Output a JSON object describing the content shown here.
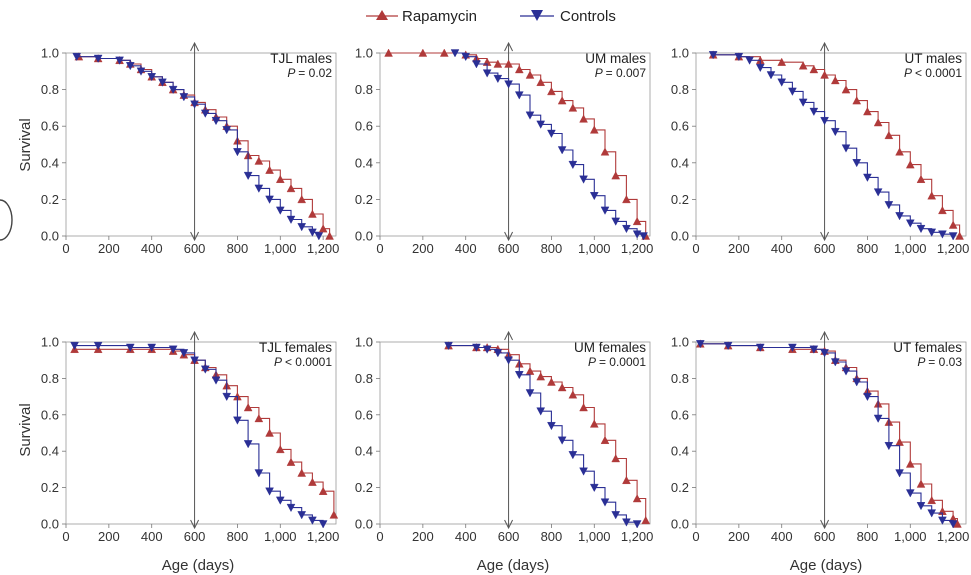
{
  "legend": {
    "items": [
      {
        "label": "Rapamycin",
        "color": "#b03a3a",
        "marker": "triangle-up"
      },
      {
        "label": "Controls",
        "color": "#2a2f95",
        "marker": "triangle-down"
      }
    ]
  },
  "axis_labels": {
    "y": "Survival",
    "x": "Age (days)"
  },
  "x_ticks": [
    "0",
    "200",
    "400",
    "600",
    "800",
    "1,000",
    "1,200"
  ],
  "y_ticks": [
    "0.0",
    "0.2",
    "0.4",
    "0.6",
    "0.8",
    "1.0"
  ],
  "chart_data": [
    {
      "type": "line",
      "panel": "TJL males",
      "title": "TJL males",
      "p_label": "P",
      "p_text": "= 0.02",
      "xlim": [
        0,
        1260
      ],
      "ylim": [
        0,
        1.0
      ],
      "marker_x": 600,
      "series": [
        {
          "name": "Rapamycin",
          "x": [
            60,
            150,
            250,
            300,
            350,
            400,
            450,
            500,
            550,
            600,
            650,
            700,
            750,
            800,
            850,
            900,
            950,
            1000,
            1050,
            1100,
            1150,
            1200,
            1230
          ],
          "y": [
            0.98,
            0.97,
            0.96,
            0.94,
            0.91,
            0.87,
            0.84,
            0.8,
            0.77,
            0.73,
            0.69,
            0.65,
            0.6,
            0.52,
            0.44,
            0.41,
            0.36,
            0.31,
            0.26,
            0.2,
            0.12,
            0.04,
            0.0
          ]
        },
        {
          "name": "Controls",
          "x": [
            50,
            150,
            250,
            300,
            350,
            400,
            450,
            500,
            550,
            600,
            650,
            700,
            750,
            800,
            850,
            900,
            950,
            1000,
            1050,
            1100,
            1150,
            1180
          ],
          "y": [
            0.98,
            0.97,
            0.96,
            0.93,
            0.9,
            0.87,
            0.84,
            0.8,
            0.76,
            0.72,
            0.67,
            0.63,
            0.58,
            0.46,
            0.33,
            0.26,
            0.2,
            0.14,
            0.09,
            0.05,
            0.02,
            0.0
          ]
        }
      ]
    },
    {
      "type": "line",
      "panel": "UM males",
      "title": "UM males",
      "p_label": "P",
      "p_text": "= 0.007",
      "xlim": [
        0,
        1260
      ],
      "ylim": [
        0,
        1.0
      ],
      "marker_x": 600,
      "series": [
        {
          "name": "Rapamycin",
          "x": [
            40,
            200,
            300,
            400,
            450,
            500,
            550,
            600,
            650,
            700,
            750,
            800,
            850,
            900,
            950,
            1000,
            1050,
            1100,
            1150,
            1200,
            1240
          ],
          "y": [
            1.0,
            1.0,
            1.0,
            0.99,
            0.97,
            0.95,
            0.94,
            0.94,
            0.91,
            0.88,
            0.84,
            0.79,
            0.74,
            0.7,
            0.64,
            0.58,
            0.46,
            0.33,
            0.2,
            0.08,
            0.0
          ]
        },
        {
          "name": "Controls",
          "x": [
            350,
            400,
            450,
            500,
            550,
            600,
            650,
            700,
            750,
            800,
            850,
            900,
            950,
            1000,
            1050,
            1100,
            1150,
            1200,
            1230
          ],
          "y": [
            1.0,
            0.98,
            0.94,
            0.89,
            0.86,
            0.83,
            0.77,
            0.66,
            0.61,
            0.56,
            0.47,
            0.39,
            0.31,
            0.22,
            0.14,
            0.08,
            0.04,
            0.01,
            0.0
          ]
        }
      ]
    },
    {
      "type": "line",
      "panel": "UT males",
      "title": "UT males",
      "p_label": "P",
      "p_text": "< 0.0001",
      "xlim": [
        0,
        1260
      ],
      "ylim": [
        0,
        1.0
      ],
      "marker_x": 600,
      "series": [
        {
          "name": "Rapamycin",
          "x": [
            80,
            200,
            300,
            400,
            500,
            550,
            600,
            650,
            700,
            750,
            800,
            850,
            900,
            950,
            1000,
            1050,
            1100,
            1150,
            1200,
            1230
          ],
          "y": [
            0.99,
            0.98,
            0.96,
            0.95,
            0.93,
            0.91,
            0.88,
            0.85,
            0.8,
            0.74,
            0.68,
            0.62,
            0.55,
            0.46,
            0.39,
            0.31,
            0.22,
            0.14,
            0.06,
            0.0
          ]
        },
        {
          "name": "Controls",
          "x": [
            80,
            200,
            250,
            300,
            350,
            400,
            450,
            500,
            550,
            600,
            650,
            700,
            750,
            800,
            850,
            900,
            950,
            1000,
            1050,
            1100,
            1150,
            1200
          ],
          "y": [
            0.99,
            0.98,
            0.96,
            0.92,
            0.88,
            0.84,
            0.79,
            0.73,
            0.68,
            0.63,
            0.57,
            0.48,
            0.4,
            0.32,
            0.24,
            0.17,
            0.11,
            0.07,
            0.04,
            0.02,
            0.01,
            0.0
          ]
        }
      ]
    },
    {
      "type": "line",
      "panel": "TJL females",
      "title": "TJL females",
      "p_label": "P",
      "p_text": "< 0.0001",
      "xlim": [
        0,
        1260
      ],
      "ylim": [
        0,
        1.0
      ],
      "marker_x": 600,
      "series": [
        {
          "name": "Rapamycin",
          "x": [
            40,
            150,
            300,
            400,
            500,
            550,
            600,
            650,
            700,
            750,
            800,
            850,
            900,
            950,
            1000,
            1050,
            1100,
            1150,
            1200,
            1250
          ],
          "y": [
            0.96,
            0.96,
            0.96,
            0.96,
            0.95,
            0.93,
            0.9,
            0.86,
            0.82,
            0.76,
            0.7,
            0.64,
            0.58,
            0.5,
            0.41,
            0.34,
            0.28,
            0.23,
            0.18,
            0.05
          ]
        },
        {
          "name": "Controls",
          "x": [
            40,
            150,
            300,
            400,
            500,
            550,
            600,
            650,
            700,
            750,
            800,
            850,
            900,
            950,
            1000,
            1050,
            1100,
            1150,
            1200
          ],
          "y": [
            0.98,
            0.98,
            0.97,
            0.97,
            0.96,
            0.94,
            0.9,
            0.85,
            0.79,
            0.7,
            0.57,
            0.44,
            0.28,
            0.18,
            0.13,
            0.09,
            0.05,
            0.02,
            0.0
          ]
        }
      ]
    },
    {
      "type": "line",
      "panel": "UM females",
      "title": "UM females",
      "p_label": "P",
      "p_text": "= 0.0001",
      "xlim": [
        0,
        1260
      ],
      "ylim": [
        0,
        1.0
      ],
      "marker_x": 600,
      "series": [
        {
          "name": "Rapamycin",
          "x": [
            320,
            450,
            500,
            550,
            600,
            650,
            700,
            750,
            800,
            850,
            900,
            950,
            1000,
            1050,
            1100,
            1150,
            1200,
            1240
          ],
          "y": [
            0.98,
            0.97,
            0.97,
            0.96,
            0.93,
            0.88,
            0.84,
            0.81,
            0.78,
            0.75,
            0.71,
            0.64,
            0.55,
            0.46,
            0.36,
            0.24,
            0.14,
            0.02
          ]
        },
        {
          "name": "Controls",
          "x": [
            320,
            450,
            500,
            550,
            600,
            650,
            700,
            750,
            800,
            850,
            900,
            950,
            1000,
            1050,
            1100,
            1150,
            1200
          ],
          "y": [
            0.98,
            0.97,
            0.96,
            0.94,
            0.9,
            0.82,
            0.72,
            0.62,
            0.54,
            0.46,
            0.38,
            0.29,
            0.2,
            0.12,
            0.05,
            0.01,
            0.0
          ]
        }
      ]
    },
    {
      "type": "line",
      "panel": "UT females",
      "title": "UT females",
      "p_label": "P",
      "p_text": "= 0.03",
      "xlim": [
        0,
        1260
      ],
      "ylim": [
        0,
        1.0
      ],
      "marker_x": 600,
      "series": [
        {
          "name": "Rapamycin",
          "x": [
            20,
            150,
            300,
            450,
            550,
            600,
            650,
            700,
            750,
            800,
            850,
            900,
            950,
            1000,
            1050,
            1100,
            1150,
            1200,
            1220
          ],
          "y": [
            0.99,
            0.98,
            0.97,
            0.96,
            0.96,
            0.95,
            0.9,
            0.86,
            0.8,
            0.73,
            0.66,
            0.56,
            0.45,
            0.33,
            0.22,
            0.13,
            0.07,
            0.03,
            0.0
          ]
        },
        {
          "name": "Controls",
          "x": [
            20,
            150,
            300,
            450,
            550,
            600,
            650,
            700,
            750,
            800,
            850,
            900,
            950,
            1000,
            1050,
            1100,
            1150,
            1200
          ],
          "y": [
            0.99,
            0.98,
            0.97,
            0.97,
            0.96,
            0.94,
            0.89,
            0.84,
            0.78,
            0.7,
            0.58,
            0.43,
            0.28,
            0.17,
            0.1,
            0.06,
            0.02,
            0.0
          ]
        }
      ]
    }
  ]
}
